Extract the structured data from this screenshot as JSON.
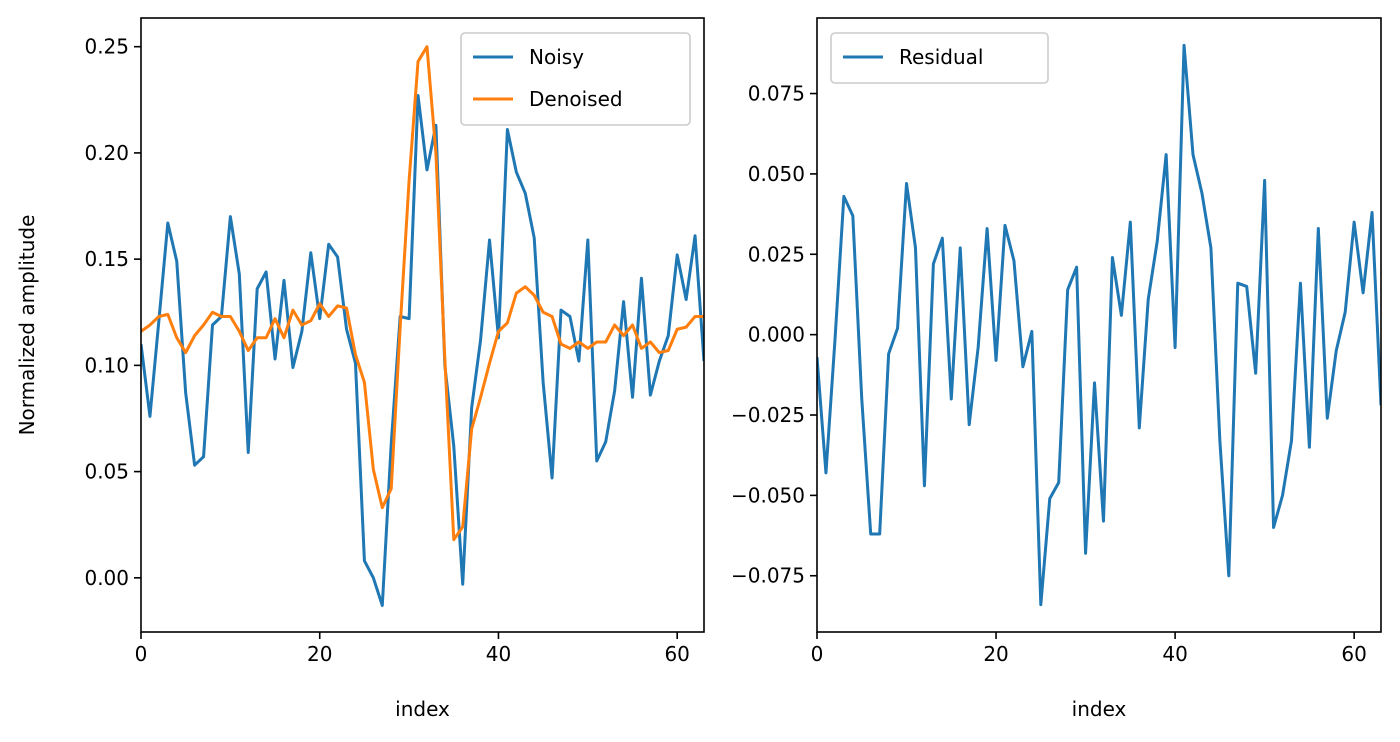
{
  "chart_data": [
    {
      "type": "line",
      "title": "",
      "xlabel": "index",
      "ylabel": "Normalized amplitude",
      "xlim": [
        0,
        63
      ],
      "ylim": [
        -0.0255,
        0.2635
      ],
      "xticks": [
        0,
        20,
        40,
        60
      ],
      "xtick_labels": [
        "0",
        "20",
        "40",
        "60"
      ],
      "yticks": [
        0.0,
        0.05,
        0.1,
        0.15,
        0.2,
        0.25
      ],
      "ytick_labels": [
        "0.00",
        "0.05",
        "0.10",
        "0.15",
        "0.20",
        "0.25"
      ],
      "grid": false,
      "legend_position": "top-right",
      "series": [
        {
          "name": "Noisy",
          "color": "#1f77b4",
          "x": [
            0,
            1,
            2,
            3,
            4,
            5,
            6,
            7,
            8,
            9,
            10,
            11,
            12,
            13,
            14,
            15,
            16,
            17,
            18,
            19,
            20,
            21,
            22,
            23,
            24,
            25,
            26,
            27,
            28,
            29,
            30,
            31,
            32,
            33,
            34,
            35,
            36,
            37,
            38,
            39,
            40,
            41,
            42,
            43,
            44,
            45,
            46,
            47,
            48,
            49,
            50,
            51,
            52,
            53,
            54,
            55,
            56,
            57,
            58,
            59,
            60,
            61,
            62,
            63
          ],
          "values": [
            0.11,
            0.076,
            0.121,
            0.167,
            0.149,
            0.087,
            0.053,
            0.057,
            0.119,
            0.123,
            0.17,
            0.143,
            0.059,
            0.136,
            0.144,
            0.103,
            0.14,
            0.099,
            0.116,
            0.153,
            0.122,
            0.157,
            0.151,
            0.117,
            0.101,
            0.008,
            0.0,
            -0.013,
            0.063,
            0.123,
            0.122,
            0.227,
            0.192,
            0.213,
            0.1,
            0.062,
            -0.003,
            0.08,
            0.112,
            0.159,
            0.113,
            0.211,
            0.191,
            0.181,
            0.16,
            0.092,
            0.047,
            0.126,
            0.123,
            0.102,
            0.159,
            0.055,
            0.064,
            0.088,
            0.13,
            0.085,
            0.141,
            0.086,
            0.102,
            0.114,
            0.152,
            0.131,
            0.161,
            0.102
          ]
        },
        {
          "name": "Denoised",
          "color": "#ff7f0e",
          "x": [
            0,
            1,
            2,
            3,
            4,
            5,
            6,
            7,
            8,
            9,
            10,
            11,
            12,
            13,
            14,
            15,
            16,
            17,
            18,
            19,
            20,
            21,
            22,
            23,
            24,
            25,
            26,
            27,
            28,
            29,
            30,
            31,
            32,
            33,
            34,
            35,
            36,
            37,
            38,
            39,
            40,
            41,
            42,
            43,
            44,
            45,
            46,
            47,
            48,
            49,
            50,
            51,
            52,
            53,
            54,
            55,
            56,
            57,
            58,
            59,
            60,
            61,
            62,
            63
          ],
          "values": [
            0.116,
            0.119,
            0.123,
            0.124,
            0.113,
            0.106,
            0.114,
            0.119,
            0.125,
            0.123,
            0.123,
            0.116,
            0.107,
            0.113,
            0.113,
            0.122,
            0.113,
            0.126,
            0.119,
            0.121,
            0.129,
            0.123,
            0.128,
            0.127,
            0.105,
            0.092,
            0.051,
            0.033,
            0.042,
            0.118,
            0.187,
            0.243,
            0.25,
            0.2,
            0.103,
            0.018,
            0.024,
            0.07,
            0.085,
            0.101,
            0.116,
            0.12,
            0.134,
            0.137,
            0.133,
            0.125,
            0.123,
            0.11,
            0.108,
            0.111,
            0.108,
            0.111,
            0.111,
            0.119,
            0.114,
            0.119,
            0.108,
            0.111,
            0.106,
            0.107,
            0.117,
            0.118,
            0.123,
            0.123
          ]
        }
      ]
    },
    {
      "type": "line",
      "title": "",
      "xlabel": "index",
      "ylabel": "",
      "xlim": [
        0,
        63
      ],
      "ylim": [
        -0.0925,
        0.0985
      ],
      "xticks": [
        0,
        20,
        40,
        60
      ],
      "xtick_labels": [
        "0",
        "20",
        "40",
        "60"
      ],
      "yticks": [
        -0.075,
        -0.05,
        -0.025,
        0.0,
        0.025,
        0.05,
        0.075
      ],
      "ytick_labels": [
        "−0.075",
        "−0.050",
        "−0.025",
        "0.000",
        "0.025",
        "0.050",
        "0.075"
      ],
      "grid": false,
      "legend_position": "top-left",
      "series": [
        {
          "name": "Residual",
          "color": "#1f77b4",
          "x": [
            0,
            1,
            2,
            3,
            4,
            5,
            6,
            7,
            8,
            9,
            10,
            11,
            12,
            13,
            14,
            15,
            16,
            17,
            18,
            19,
            20,
            21,
            22,
            23,
            24,
            25,
            26,
            27,
            28,
            29,
            30,
            31,
            32,
            33,
            34,
            35,
            36,
            37,
            38,
            39,
            40,
            41,
            42,
            43,
            44,
            45,
            46,
            47,
            48,
            49,
            50,
            51,
            52,
            53,
            54,
            55,
            56,
            57,
            58,
            59,
            60,
            61,
            62,
            63
          ],
          "values": [
            -0.007,
            -0.043,
            -0.002,
            0.043,
            0.037,
            -0.02,
            -0.062,
            -0.062,
            -0.006,
            0.002,
            0.047,
            0.027,
            -0.047,
            0.022,
            0.03,
            -0.02,
            0.027,
            -0.028,
            -0.004,
            0.033,
            -0.008,
            0.034,
            0.023,
            -0.01,
            0.001,
            -0.084,
            -0.051,
            -0.046,
            0.014,
            0.021,
            -0.068,
            -0.015,
            -0.058,
            0.024,
            0.006,
            0.035,
            -0.029,
            0.011,
            0.029,
            0.056,
            -0.004,
            0.09,
            0.056,
            0.044,
            0.027,
            -0.033,
            -0.075,
            0.016,
            0.015,
            -0.012,
            0.048,
            -0.06,
            -0.05,
            -0.033,
            0.016,
            -0.035,
            0.033,
            -0.026,
            -0.005,
            0.007,
            0.035,
            0.013,
            0.038,
            -0.022
          ]
        }
      ]
    }
  ]
}
